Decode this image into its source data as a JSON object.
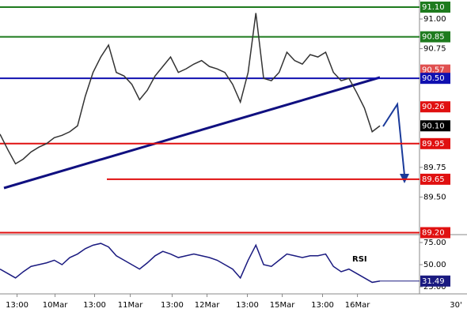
{
  "chart_data": [
    {
      "type": "line",
      "series": [
        {
          "name": "Price",
          "color": "#333333",
          "values": [
            90.03,
            89.9,
            89.78,
            89.82,
            89.88,
            89.92,
            89.95,
            90.0,
            90.02,
            90.05,
            90.1,
            90.35,
            90.55,
            90.68,
            90.78,
            90.55,
            90.52,
            90.45,
            90.32,
            90.4,
            90.52,
            90.6,
            90.68,
            90.55,
            90.58,
            90.62,
            90.65,
            90.6,
            90.58,
            90.55,
            90.45,
            90.3,
            90.55,
            91.05,
            90.5,
            90.48,
            90.55,
            90.72,
            90.65,
            90.62,
            90.7,
            90.68,
            90.72,
            90.55,
            90.48,
            90.5,
            90.38,
            90.25,
            90.05,
            90.1
          ]
        }
      ],
      "ylim": [
        89.19,
        91.16
      ],
      "yticks": [
        {
          "value": 91.0,
          "label": "91.00"
        },
        {
          "value": 90.75,
          "label": "90.75"
        },
        {
          "value": 89.75,
          "label": "89.75"
        },
        {
          "value": 89.5,
          "label": "89.50"
        }
      ],
      "levels": [
        {
          "value": 91.1,
          "label": "91.10",
          "color": "#1e7b1e",
          "line": true
        },
        {
          "value": 90.85,
          "label": "90.85",
          "color": "#1e7b1e",
          "line": true
        },
        {
          "value": 90.57,
          "label": "90.57",
          "color": "#e05050",
          "line": false
        },
        {
          "value": 90.5,
          "label": "90.50",
          "color": "#1010b0",
          "line": true
        },
        {
          "value": 90.26,
          "label": "90.26",
          "color": "#e01010",
          "line": false
        },
        {
          "value": 90.1,
          "label": "90.10",
          "color": "#000000",
          "line": false
        },
        {
          "value": 89.95,
          "label": "89.95",
          "color": "#e01010",
          "line": true
        },
        {
          "value": 89.65,
          "label": "89.65",
          "color": "#e01010",
          "line": true
        },
        {
          "value": 89.2,
          "label": "89.20",
          "color": "#e01010",
          "line": true
        }
      ],
      "xticks": [
        {
          "value": 2.2,
          "label": "13:00"
        },
        {
          "value": 7.1,
          "label": "10Mar"
        },
        {
          "value": 12.2,
          "label": "13:00"
        },
        {
          "value": 16.8,
          "label": "11Mar"
        },
        {
          "value": 22.2,
          "label": "13:00"
        },
        {
          "value": 26.7,
          "label": "12Mar"
        },
        {
          "value": 31.9,
          "label": "13:00"
        },
        {
          "value": 36.4,
          "label": "15Mar"
        },
        {
          "value": 41.6,
          "label": "13:00"
        },
        {
          "value": 46.1,
          "label": "16Mar"
        }
      ],
      "timeframe": "30'"
    },
    {
      "type": "line",
      "title": "RSI",
      "series": [
        {
          "name": "RSI",
          "color": "#1a1a80",
          "values": [
            45,
            40,
            35,
            42,
            48,
            50,
            52,
            55,
            50,
            58,
            62,
            68,
            72,
            74,
            70,
            60,
            55,
            50,
            45,
            52,
            60,
            65,
            62,
            58,
            60,
            62,
            60,
            58,
            55,
            50,
            45,
            35,
            55,
            72,
            50,
            48,
            55,
            62,
            60,
            58,
            60,
            60,
            62,
            48,
            42,
            45,
            40,
            35,
            30,
            31.49
          ]
        }
      ],
      "value_labels": [
        "31.49"
      ],
      "ylim": [
        17,
        83
      ],
      "yticks": [
        {
          "value": 75,
          "label": "75.00"
        },
        {
          "value": 50,
          "label": "50.00"
        },
        {
          "value": 25,
          "label": "25.00"
        }
      ]
    }
  ]
}
